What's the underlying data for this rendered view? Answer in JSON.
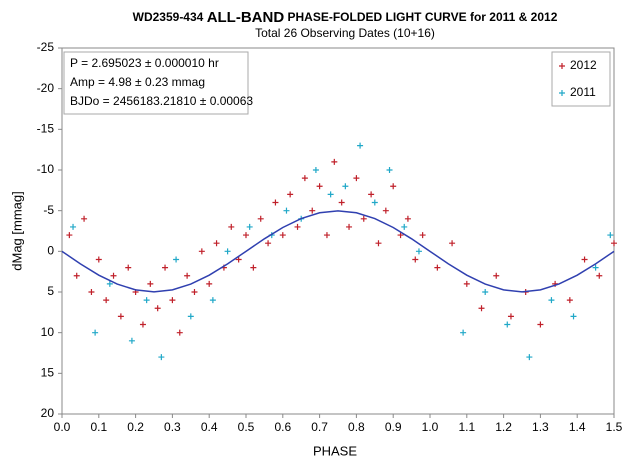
{
  "chart_data": {
    "type": "scatter",
    "title_parts": [
      "WD2359-434",
      "ALL-BAND",
      "PHASE-FOLDED  LIGHT CURVE  for 2011 & 2012"
    ],
    "subtitle": "Total 26 Observing Dates (10+16)",
    "annotations": [
      "P = 2.695023  ± 0.000010  hr",
      "Amp = 4.98 ± 0.23 mmag",
      "BJDo = 2456183.21810  ± 0.00063"
    ],
    "x_label": "PHASE",
    "y_label": "dMag [mmag]",
    "xlim": [
      0,
      1.5
    ],
    "xticks": [
      {
        "value": 0,
        "label": "0.0"
      },
      0.1,
      0.2,
      0.3,
      0.4,
      0.5,
      0.6,
      0.7,
      0.8,
      0.9,
      {
        "value": 1,
        "label": "1.0"
      },
      1.1,
      1.2,
      1.3,
      1.4,
      1.5
    ],
    "ylim": [
      -25,
      20
    ],
    "y_inverted": true,
    "yticks": [
      -25,
      -20,
      -15,
      -10,
      -5,
      0,
      5,
      10,
      15,
      20
    ],
    "legend": "top-right",
    "series": [
      {
        "name": "2012",
        "color": "#c0202a",
        "x": [
          0.02,
          0.04,
          0.06,
          0.08,
          0.1,
          0.12,
          0.14,
          0.16,
          0.18,
          0.2,
          0.22,
          0.24,
          0.26,
          0.28,
          0.3,
          0.32,
          0.34,
          0.36,
          0.38,
          0.4,
          0.42,
          0.44,
          0.46,
          0.48,
          0.5,
          0.52,
          0.54,
          0.56,
          0.58,
          0.6,
          0.62,
          0.64,
          0.66,
          0.68,
          0.7,
          0.72,
          0.74,
          0.76,
          0.78,
          0.8,
          0.82,
          0.84,
          0.86,
          0.88,
          0.9,
          0.92,
          0.94,
          0.96,
          0.98,
          1.02,
          1.06,
          1.1,
          1.14,
          1.18,
          1.22,
          1.26,
          1.3,
          1.34,
          1.38,
          1.42,
          1.46,
          1.5
        ],
        "values": [
          -2,
          3,
          -4,
          5,
          1,
          6,
          3,
          8,
          2,
          5,
          9,
          4,
          7,
          2,
          6,
          10,
          3,
          5,
          0,
          4,
          -1,
          2,
          -3,
          1,
          -2,
          2,
          -4,
          -1,
          -6,
          -2,
          -7,
          -3,
          -9,
          -5,
          -8,
          -2,
          -11,
          -6,
          -3,
          -9,
          -4,
          -7,
          -1,
          -5,
          -8,
          -2,
          -4,
          1,
          -2,
          2,
          -1,
          4,
          7,
          3,
          8,
          5,
          9,
          4,
          6,
          1,
          3,
          -1
        ]
      },
      {
        "name": "2011",
        "color": "#20a8c8",
        "x": [
          0.03,
          0.09,
          0.13,
          0.19,
          0.23,
          0.27,
          0.31,
          0.35,
          0.41,
          0.45,
          0.51,
          0.57,
          0.61,
          0.65,
          0.69,
          0.73,
          0.77,
          0.81,
          0.85,
          0.89,
          0.93,
          0.97,
          1.09,
          1.15,
          1.21,
          1.27,
          1.33,
          1.39,
          1.45,
          1.49
        ],
        "values": [
          -3,
          10,
          4,
          11,
          6,
          13,
          1,
          8,
          6,
          0,
          -3,
          -2,
          -5,
          -4,
          -10,
          -7,
          -8,
          -13,
          -6,
          -10,
          -3,
          0,
          10,
          5,
          9,
          13,
          6,
          8,
          2,
          -2
        ]
      }
    ],
    "fit": {
      "color": "#3040b0",
      "x": [
        0,
        0.05,
        0.1,
        0.15,
        0.2,
        0.25,
        0.3,
        0.35,
        0.4,
        0.45,
        0.5,
        0.55,
        0.6,
        0.65,
        0.7,
        0.75,
        0.8,
        0.85,
        0.9,
        0.95,
        1,
        1.05,
        1.1,
        1.15,
        1.2,
        1.25,
        1.3,
        1.35,
        1.4,
        1.45,
        1.5
      ],
      "values": [
        0,
        1.54,
        2.93,
        4.03,
        4.74,
        4.98,
        4.74,
        4.03,
        2.93,
        1.54,
        0,
        -1.54,
        -2.93,
        -4.03,
        -4.74,
        -4.98,
        -4.74,
        -4.03,
        -2.93,
        -1.54,
        0,
        1.54,
        2.93,
        4.03,
        4.74,
        4.98,
        4.74,
        4.03,
        2.93,
        1.54,
        0
      ]
    }
  }
}
